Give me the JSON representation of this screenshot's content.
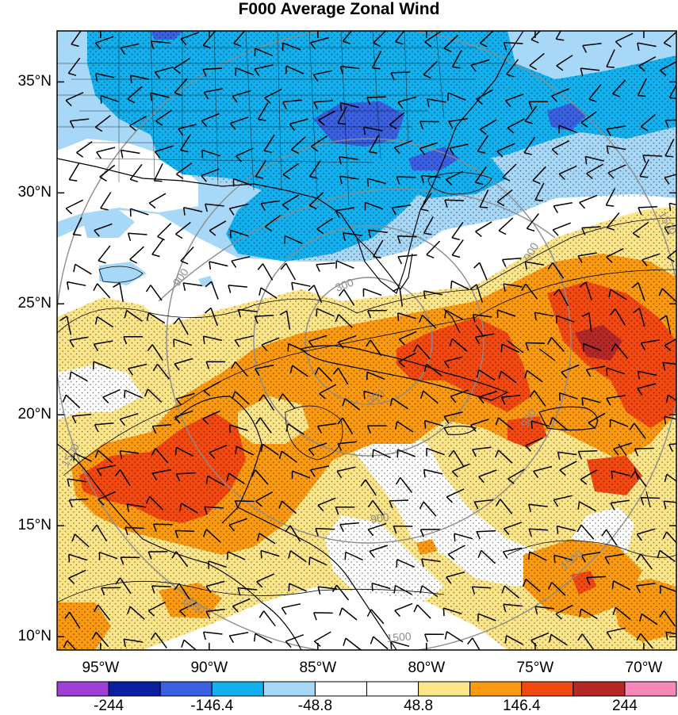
{
  "title": "F000 Average Zonal Wind",
  "map": {
    "lat_labels": [
      "35°N",
      "30°N",
      "25°N",
      "20°N",
      "15°N",
      "10°N"
    ],
    "lat_values": [
      35,
      30,
      25,
      20,
      15,
      10
    ],
    "lon_labels": [
      "95°W",
      "90°W",
      "85°W",
      "80°W",
      "75°W",
      "70°W"
    ],
    "lon_values": [
      -95,
      -90,
      -85,
      -80,
      -75,
      -70
    ],
    "lat_range": [
      9.4,
      37.3
    ],
    "lon_range": [
      -97.0,
      -68.5
    ]
  },
  "contour_labels": [
    "900",
    "300",
    "900",
    "900",
    "300",
    "900",
    "1500",
    "1500",
    "1500",
    "1500",
    "1500"
  ],
  "colorbar": {
    "tick_labels": [
      "-244",
      "-146.4",
      "-48.8",
      "48.8",
      "146.4",
      "244"
    ],
    "colors": [
      "#a03fd6",
      "#0a1fa0",
      "#3a5fe0",
      "#12b0ee",
      "#a8d8f8",
      "#ffffff",
      "#ffffff",
      "#fde58a",
      "#fb9a10",
      "#f34810",
      "#b52828",
      "#f788b8"
    ]
  },
  "fill_colors": {
    "light_blue": "#a8d8f8",
    "blue": "#12b0ee",
    "dark_blue": "#3a5fe0",
    "yellow": "#fde58a",
    "orange": "#fb9a10",
    "red_orange": "#f34810",
    "dark_red": "#b52828"
  }
}
